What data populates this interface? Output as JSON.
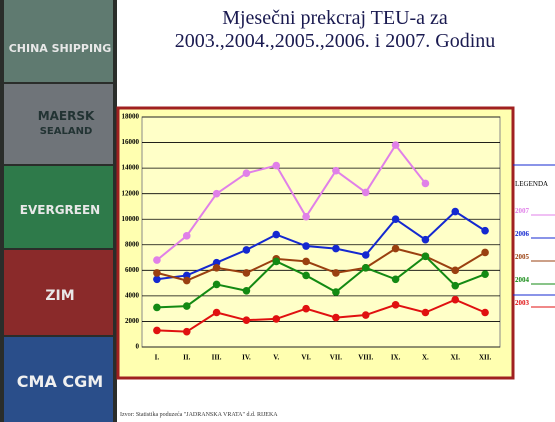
{
  "sidebar": {
    "logos": [
      "CHINA SHIPPING",
      "MAERSK",
      "SEALAND",
      "EVERGREEN",
      "ZIM",
      "CMA CGM"
    ]
  },
  "chart_data": {
    "type": "line",
    "title_lines": [
      "Mjesečni prekcraj TEU-a za",
      "2003.,2004.,2005.,2006. i 2007. Godinu"
    ],
    "categories": [
      "I.",
      "II.",
      "III.",
      "IV.",
      "V.",
      "VI.",
      "VII.",
      "VIII.",
      "IX.",
      "X.",
      "XI.",
      "XII."
    ],
    "legend_title": "LEGENDA",
    "series": [
      {
        "name": "2007",
        "color": "#e080e8",
        "values": [
          6800,
          8700,
          12000,
          13600,
          14200,
          10200,
          13800,
          12100,
          15800,
          12800,
          null,
          null
        ]
      },
      {
        "name": "2006",
        "color": "#1428d0",
        "values": [
          5300,
          5600,
          6600,
          7600,
          8800,
          7900,
          7700,
          7200,
          10000,
          8400,
          10600,
          9100
        ]
      },
      {
        "name": "2005",
        "color": "#9a4010",
        "values": [
          5800,
          5200,
          6200,
          5800,
          6900,
          6700,
          5800,
          6200,
          7700,
          7100,
          6000,
          7400
        ]
      },
      {
        "name": "2004",
        "color": "#138a13",
        "values": [
          3100,
          3200,
          4900,
          4400,
          6700,
          5600,
          4300,
          6200,
          5300,
          7100,
          4800,
          5700
        ]
      },
      {
        "name": "2003",
        "color": "#e01010",
        "values": [
          1300,
          1200,
          2700,
          2100,
          2200,
          3000,
          2300,
          2500,
          3300,
          2700,
          3700,
          2700
        ]
      }
    ],
    "ylim": [
      0,
      18000
    ],
    "yticks": [
      0,
      2000,
      4000,
      6000,
      8000,
      10000,
      12000,
      14000,
      16000,
      18000
    ],
    "grid": true,
    "source": "Izvor: Statistika poduzeća \"JADRANSKA VRATA\" d.d. RIJEKA"
  }
}
